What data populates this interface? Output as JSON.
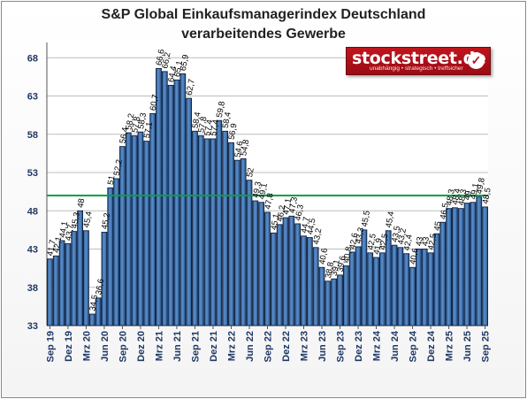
{
  "title_line1": "S&P Global Einkaufsmanagerindex Deutschland",
  "title_line2": "verarbeitendes Gewerbe",
  "logo": {
    "name": "stockstreet.de",
    "tagline": "unabhängig • strategisch • treffsicher",
    "icon": "checkmark-icon"
  },
  "chart_data": {
    "type": "bar",
    "title": "S&P Global Einkaufsmanagerindex Deutschland verarbeitendes Gewerbe",
    "ylim": [
      33,
      70
    ],
    "yticks": [
      33,
      38,
      43,
      48,
      53,
      58,
      63,
      68
    ],
    "grid": "horizontal",
    "reference_line": {
      "value": 50,
      "color": "#00a040"
    },
    "x_tick_labels": [
      "Sep 19",
      "Dez 19",
      "Mrz 20",
      "Jun 20",
      "Sep 20",
      "Dez 20",
      "Mrz 21",
      "Jun 21",
      "Sep 21",
      "Dez 21",
      "Mrz 22",
      "Jun 22",
      "Sep 22",
      "Dez 22",
      "Mrz 23",
      "Jun 23",
      "Sep 23",
      "Dez 23",
      "Mrz 24",
      "Jun 24",
      "Sep 24",
      "Dez 24",
      "Mrz 25",
      "Jun 25",
      "Sep 25"
    ],
    "categories": [
      "Sep 19",
      "Okt 19",
      "Nov 19",
      "Dez 19",
      "Jan 20",
      "Feb 20",
      "Mrz 20",
      "Apr 20",
      "Mai 20",
      "Jun 20",
      "Jul 20",
      "Aug 20",
      "Sep 20",
      "Okt 20",
      "Nov 20",
      "Dez 20",
      "Jan 21",
      "Feb 21",
      "Mrz 21",
      "Apr 21",
      "Mai 21",
      "Jun 21",
      "Jul 21",
      "Aug 21",
      "Sep 21",
      "Okt 21",
      "Nov 21",
      "Dez 21",
      "Jan 22",
      "Feb 22",
      "Mrz 22",
      "Apr 22",
      "Mai 22",
      "Jun 22",
      "Jul 22",
      "Aug 22",
      "Sep 22",
      "Okt 22",
      "Nov 22",
      "Dez 22",
      "Jan 23",
      "Feb 23",
      "Mrz 23",
      "Apr 23",
      "Mai 23",
      "Jun 23",
      "Jul 23",
      "Aug 23",
      "Sep 23",
      "Okt 23",
      "Nov 23",
      "Dez 23",
      "Jan 24",
      "Feb 24",
      "Mrz 24",
      "Apr 24",
      "Mai 24",
      "Jun 24",
      "Jul 24",
      "Aug 24",
      "Sep 24",
      "Okt 24",
      "Nov 24",
      "Dez 24",
      "Jan 25",
      "Feb 25",
      "Mrz 25",
      "Apr 25",
      "Mai 25",
      "Jun 25",
      "Jul 25",
      "Aug 25",
      "Sep 25"
    ],
    "values": [
      41.7,
      42.1,
      44.1,
      43.7,
      45.3,
      48,
      45.4,
      34.5,
      36.6,
      45.2,
      51,
      52.2,
      56.4,
      58.2,
      57.8,
      58.3,
      57.1,
      60.7,
      66.6,
      66.2,
      64.4,
      65.1,
      65.9,
      62.7,
      58.4,
      57.8,
      57.4,
      57.4,
      59.8,
      58.4,
      56.9,
      54.6,
      54.8,
      52,
      49.3,
      49.1,
      47.8,
      45.1,
      46.2,
      47.1,
      47.3,
      46.3,
      44.7,
      44.5,
      43.2,
      40.6,
      38.8,
      39.1,
      39.6,
      40.8,
      42.6,
      43.3,
      45.5,
      42.5,
      41.9,
      42.5,
      45.4,
      43.5,
      43.2,
      42.4,
      40.6,
      43,
      43,
      42.5,
      45,
      46.5,
      48.3,
      48.4,
      48.3,
      49,
      49.1,
      49.8,
      48.5
    ],
    "value_labels": [
      "41,7",
      "42,1",
      "44,1",
      "43,7",
      "45,3",
      "48",
      "45,4",
      "34,5",
      "36,6",
      "45,2",
      "51",
      "52,2",
      "56,4",
      "58,2",
      "57,8",
      "58,3",
      "57,1",
      "60,7",
      "66,6",
      "66,2",
      "64,4",
      "65,1",
      "65,9",
      "62,7",
      "58,4",
      "57,8",
      "57,4",
      "57,4",
      "59,8",
      "58,4",
      "56,9",
      "54,6",
      "54,8",
      "52",
      "49,3",
      "49,1",
      "47,8",
      "45,1",
      "46,2",
      "47,1",
      "47,3",
      "46,3",
      "44,7",
      "44,5",
      "43,2",
      "40,6",
      "38,8",
      "39,1",
      "39,6",
      "40,8",
      "42,6",
      "43,3",
      "45,5",
      "42,5",
      "41,9",
      "42,5",
      "45,4",
      "43,5",
      "43,2",
      "42,4",
      "40,6",
      "43",
      "43",
      "42,5",
      "45",
      "46,5",
      "48,3",
      "48,4",
      "48,3",
      "49",
      "49,1",
      "49,8",
      "48,5"
    ],
    "bar_color": "#5b8fc9",
    "bar_stroke": "#0d1f3c"
  }
}
